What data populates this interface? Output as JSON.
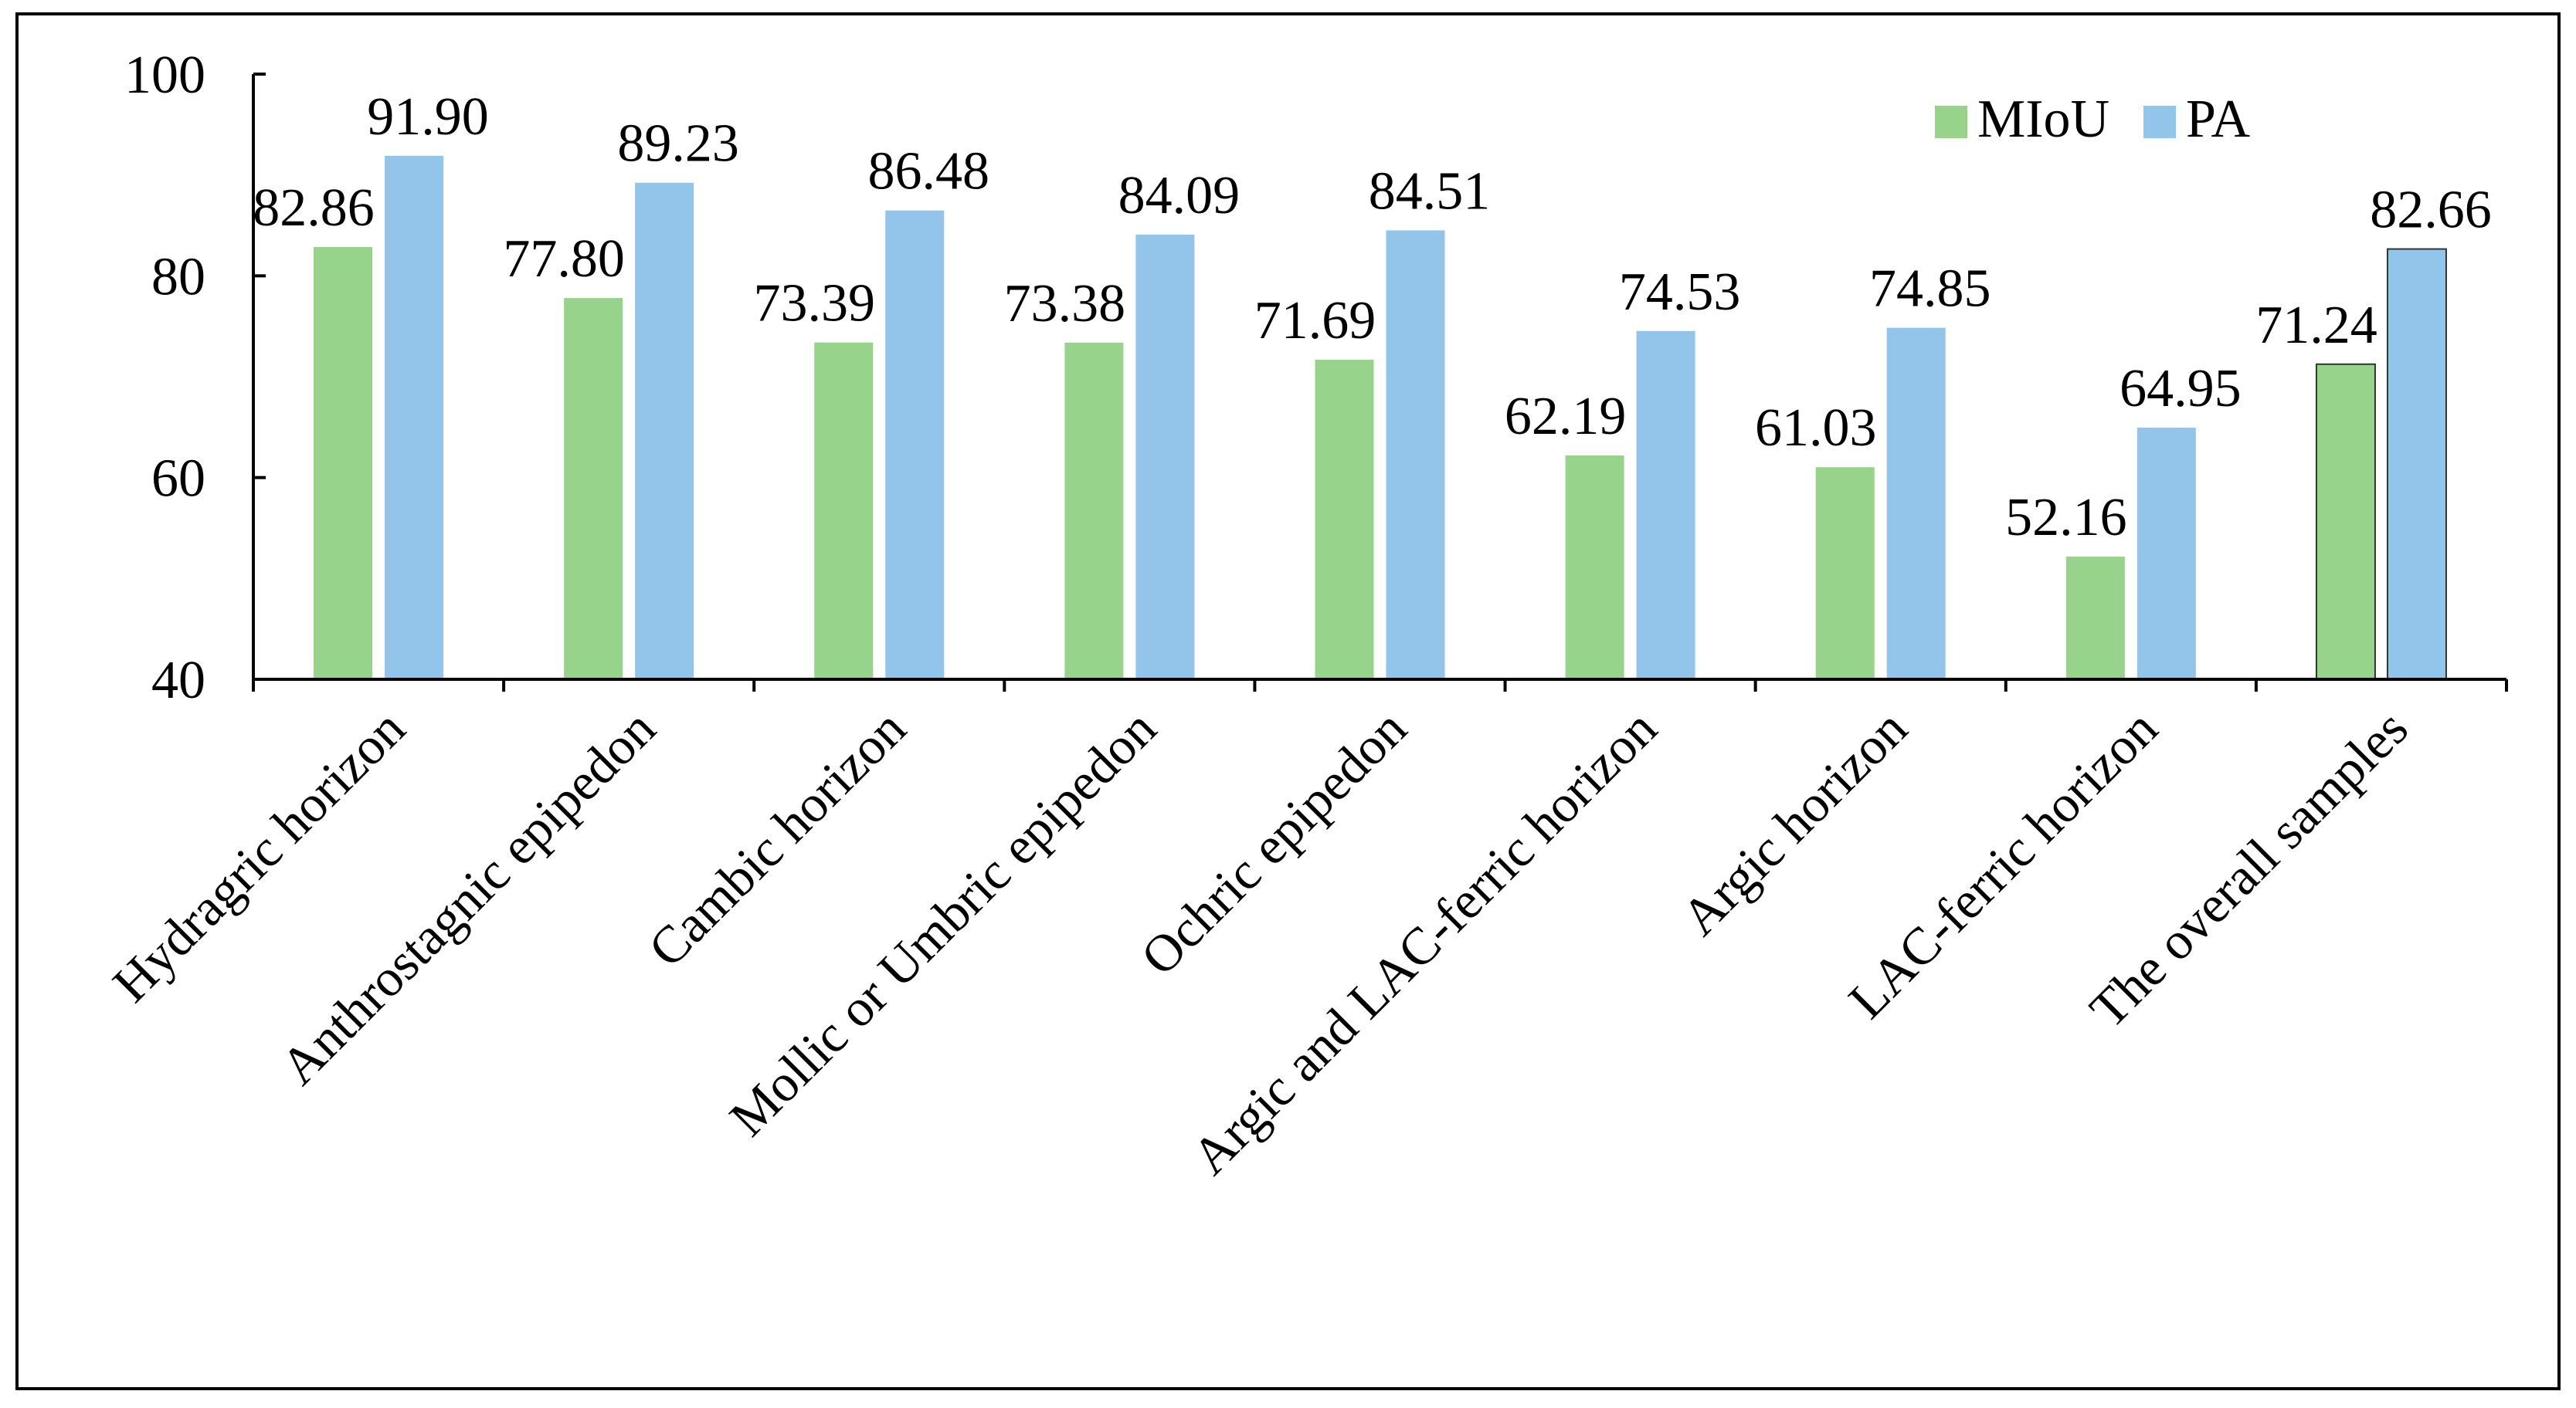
{
  "chart_data": {
    "type": "bar",
    "title": "",
    "xlabel": "",
    "ylabel": "",
    "ylim": [
      40,
      100
    ],
    "yticks": [
      "40",
      "60",
      "80",
      "100"
    ],
    "grid": false,
    "legend_position": "top-right",
    "categories": [
      "Hydragric horizon",
      "Anthrostagnic epipedon",
      "Cambic horizon",
      "Mollic or Umbric epipedon",
      "Ochric epipedon",
      "Argic and LAC-ferric horizon",
      "Argic horizon",
      "LAC-ferric horizon",
      "The overall samples"
    ],
    "series": [
      {
        "name": "MIoU",
        "color": "#97d38a",
        "values": [
          82.86,
          77.8,
          73.39,
          73.38,
          71.69,
          62.19,
          61.03,
          52.16,
          71.24
        ],
        "labels": [
          "82.86",
          "77.80",
          "73.39",
          "73.38",
          "71.69",
          "62.19",
          "61.03",
          "52.16",
          "71.24"
        ]
      },
      {
        "name": "PA",
        "color": "#92c5e9",
        "values": [
          91.9,
          89.23,
          86.48,
          84.09,
          84.51,
          74.53,
          74.85,
          64.95,
          82.66
        ],
        "labels": [
          "91.90",
          "89.23",
          "86.48",
          "84.09",
          "84.51",
          "74.53",
          "74.85",
          "64.95",
          "82.66"
        ]
      }
    ]
  }
}
